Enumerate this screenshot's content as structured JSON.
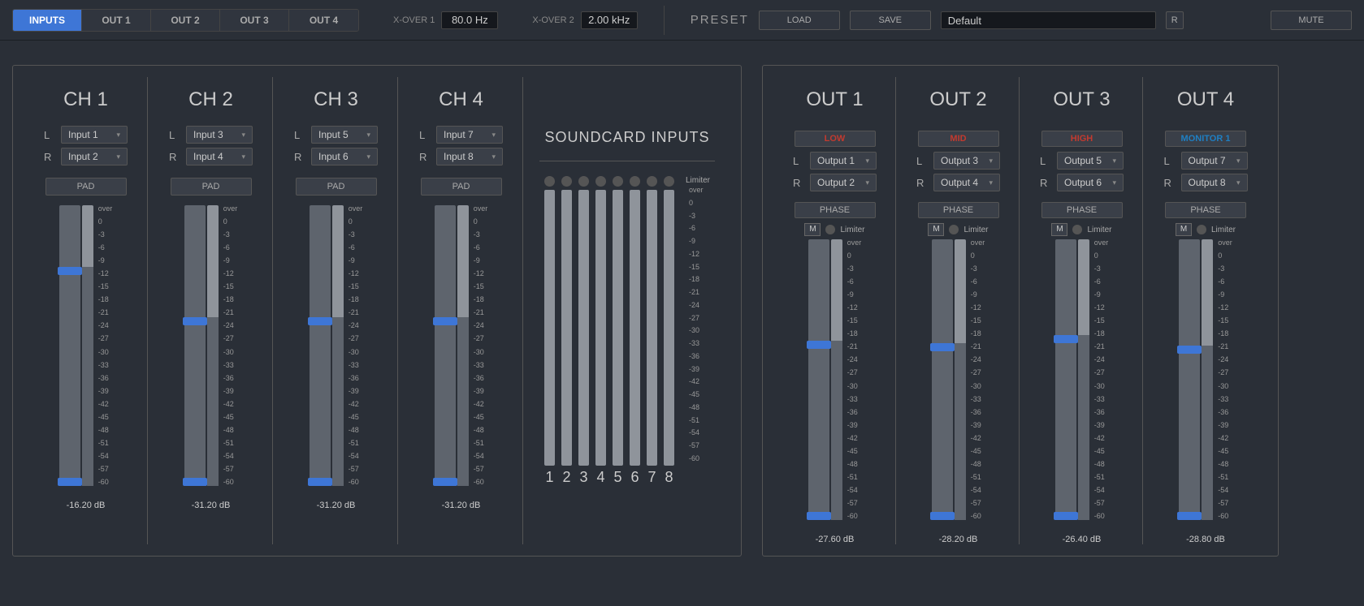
{
  "tabs": [
    "INPUTS",
    "OUT 1",
    "OUT 2",
    "OUT 3",
    "OUT 4"
  ],
  "activeTab": 0,
  "xover": [
    {
      "label": "X-OVER 1",
      "value": "80.0 Hz"
    },
    {
      "label": "X-OVER 2",
      "value": "2.00 kHz"
    }
  ],
  "preset": {
    "label": "PRESET",
    "load": "LOAD",
    "save": "SAVE",
    "name": "Default",
    "r": "R",
    "mute": "MUTE"
  },
  "scaleLabels": [
    "over",
    "0",
    "-3",
    "-6",
    "-9",
    "-12",
    "-15",
    "-18",
    "-21",
    "-24",
    "-27",
    "-30",
    "-33",
    "-36",
    "-39",
    "-42",
    "-45",
    "-48",
    "-51",
    "-54",
    "-57",
    "-60"
  ],
  "limiterLabel": "Limiter",
  "padLabel": "PAD",
  "phaseLabel": "PHASE",
  "muteLabel": "M",
  "inputs": [
    {
      "title": "CH 1",
      "L": "Input 1",
      "R": "Input 2",
      "db": "-16.20 dB",
      "faderTopPct": 22,
      "meterFillPct": 78
    },
    {
      "title": "CH 2",
      "L": "Input 3",
      "R": "Input 4",
      "db": "-31.20 dB",
      "faderTopPct": 40,
      "meterFillPct": 60
    },
    {
      "title": "CH 3",
      "L": "Input 5",
      "R": "Input 6",
      "db": "-31.20 dB",
      "faderTopPct": 40,
      "meterFillPct": 60
    },
    {
      "title": "CH 4",
      "L": "Input 7",
      "R": "Input 8",
      "db": "-31.20 dB",
      "faderTopPct": 40,
      "meterFillPct": 60
    }
  ],
  "soundcard": {
    "title": "SOUNDCARD INPUTS",
    "count": 8
  },
  "outputs": [
    {
      "title": "OUT 1",
      "name": "LOW",
      "nameColor": "red",
      "L": "Output 1",
      "R": "Output 2",
      "db": "-27.60 dB",
      "faderTopPct": 36,
      "meterFillPct": 64
    },
    {
      "title": "OUT 2",
      "name": "MID",
      "nameColor": "red",
      "L": "Output 3",
      "R": "Output 4",
      "db": "-28.20 dB",
      "faderTopPct": 37,
      "meterFillPct": 63
    },
    {
      "title": "OUT 3",
      "name": "HIGH",
      "nameColor": "red",
      "L": "Output 5",
      "R": "Output 6",
      "db": "-26.40 dB",
      "faderTopPct": 34,
      "meterFillPct": 66
    },
    {
      "title": "OUT 4",
      "name": "MONITOR 1",
      "nameColor": "blue",
      "L": "Output 7",
      "R": "Output 8",
      "db": "-28.80 dB",
      "faderTopPct": 38,
      "meterFillPct": 62
    }
  ],
  "colors": {
    "accent": "#3e76d6",
    "bg": "#2a2f37",
    "track": "#5e646d",
    "meter": "#8f949b"
  }
}
